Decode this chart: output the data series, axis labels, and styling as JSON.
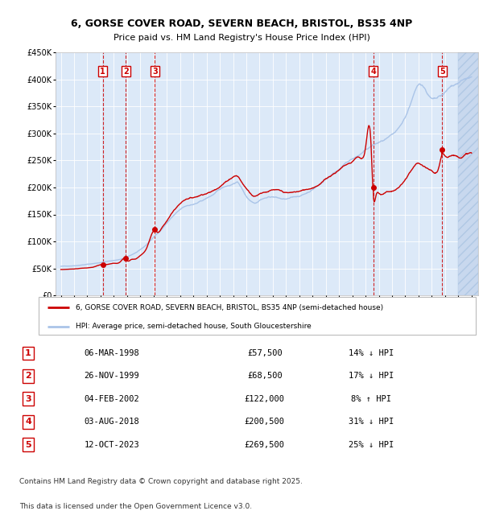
{
  "title_line1": "6, GORSE COVER ROAD, SEVERN BEACH, BRISTOL, BS35 4NP",
  "title_line2": "Price paid vs. HM Land Registry's House Price Index (HPI)",
  "ylim": [
    0,
    450000
  ],
  "yticks": [
    0,
    50000,
    100000,
    150000,
    200000,
    250000,
    300000,
    350000,
    400000,
    450000
  ],
  "ytick_labels": [
    "£0",
    "£50K",
    "£100K",
    "£150K",
    "£200K",
    "£250K",
    "£300K",
    "£350K",
    "£400K",
    "£450K"
  ],
  "xmin": 1994.6,
  "xmax": 2026.5,
  "plot_bg_color": "#dce9f8",
  "hpi_color": "#aac4e8",
  "price_color": "#cc0000",
  "legend_label_price": "6, GORSE COVER ROAD, SEVERN BEACH, BRISTOL, BS35 4NP (semi-detached house)",
  "legend_label_hpi": "HPI: Average price, semi-detached house, South Gloucestershire",
  "transactions": [
    {
      "num": 1,
      "date_label": "06-MAR-1998",
      "price": 57500,
      "pct": "14%",
      "dir": "↓",
      "year": 1998.17
    },
    {
      "num": 2,
      "date_label": "26-NOV-1999",
      "price": 68500,
      "pct": "17%",
      "dir": "↓",
      "year": 1999.9
    },
    {
      "num": 3,
      "date_label": "04-FEB-2002",
      "price": 122000,
      "pct": "8%",
      "dir": "↑",
      "year": 2002.09
    },
    {
      "num": 4,
      "date_label": "03-AUG-2018",
      "price": 200500,
      "pct": "31%",
      "dir": "↓",
      "year": 2018.58
    },
    {
      "num": 5,
      "date_label": "12-OCT-2023",
      "price": 269500,
      "pct": "25%",
      "dir": "↓",
      "year": 2023.78
    }
  ],
  "footer_line1": "Contains HM Land Registry data © Crown copyright and database right 2025.",
  "footer_line2": "This data is licensed under the Open Government Licence v3.0.",
  "hpi_waypoints": [
    [
      1995.0,
      54000
    ],
    [
      1995.5,
      54500
    ],
    [
      1996.0,
      55500
    ],
    [
      1996.5,
      57000
    ],
    [
      1997.0,
      58500
    ],
    [
      1997.5,
      60000
    ],
    [
      1998.0,
      62000
    ],
    [
      1998.5,
      64000
    ],
    [
      1999.0,
      66000
    ],
    [
      1999.5,
      68000
    ],
    [
      2000.0,
      72000
    ],
    [
      2000.5,
      78000
    ],
    [
      2001.0,
      85000
    ],
    [
      2001.5,
      95000
    ],
    [
      2002.0,
      108000
    ],
    [
      2002.5,
      120000
    ],
    [
      2003.0,
      135000
    ],
    [
      2003.5,
      148000
    ],
    [
      2004.0,
      158000
    ],
    [
      2004.5,
      165000
    ],
    [
      2005.0,
      168000
    ],
    [
      2005.5,
      172000
    ],
    [
      2006.0,
      178000
    ],
    [
      2006.5,
      185000
    ],
    [
      2007.0,
      193000
    ],
    [
      2007.5,
      200000
    ],
    [
      2008.0,
      205000
    ],
    [
      2008.3,
      208000
    ],
    [
      2008.7,
      195000
    ],
    [
      2009.0,
      182000
    ],
    [
      2009.3,
      175000
    ],
    [
      2009.7,
      172000
    ],
    [
      2010.0,
      178000
    ],
    [
      2010.5,
      183000
    ],
    [
      2011.0,
      185000
    ],
    [
      2011.5,
      182000
    ],
    [
      2012.0,
      180000
    ],
    [
      2012.5,
      182000
    ],
    [
      2013.0,
      185000
    ],
    [
      2013.5,
      190000
    ],
    [
      2014.0,
      198000
    ],
    [
      2014.5,
      207000
    ],
    [
      2015.0,
      218000
    ],
    [
      2015.5,
      228000
    ],
    [
      2016.0,
      238000
    ],
    [
      2016.5,
      248000
    ],
    [
      2017.0,
      255000
    ],
    [
      2017.5,
      262000
    ],
    [
      2018.0,
      270000
    ],
    [
      2018.5,
      278000
    ],
    [
      2019.0,
      283000
    ],
    [
      2019.5,
      287000
    ],
    [
      2020.0,
      291000
    ],
    [
      2020.5,
      300000
    ],
    [
      2021.0,
      320000
    ],
    [
      2021.3,
      338000
    ],
    [
      2021.6,
      358000
    ],
    [
      2021.9,
      372000
    ],
    [
      2022.2,
      378000
    ],
    [
      2022.5,
      370000
    ],
    [
      2022.8,
      358000
    ],
    [
      2023.0,
      352000
    ],
    [
      2023.3,
      350000
    ],
    [
      2023.6,
      352000
    ],
    [
      2024.0,
      358000
    ],
    [
      2024.5,
      368000
    ],
    [
      2025.0,
      375000
    ],
    [
      2025.5,
      380000
    ],
    [
      2026.0,
      382000
    ]
  ],
  "price_waypoints": [
    [
      1995.0,
      48000
    ],
    [
      1995.5,
      48500
    ],
    [
      1996.0,
      49500
    ],
    [
      1996.5,
      50500
    ],
    [
      1997.0,
      51500
    ],
    [
      1997.5,
      53000
    ],
    [
      1998.17,
      57500
    ],
    [
      1998.5,
      57000
    ],
    [
      1999.0,
      60000
    ],
    [
      1999.5,
      63000
    ],
    [
      1999.9,
      68500
    ],
    [
      2000.0,
      65000
    ],
    [
      2000.3,
      67000
    ],
    [
      2000.6,
      68000
    ],
    [
      2001.0,
      75000
    ],
    [
      2001.5,
      90000
    ],
    [
      2002.09,
      122000
    ],
    [
      2002.3,
      118000
    ],
    [
      2002.6,
      125000
    ],
    [
      2003.0,
      140000
    ],
    [
      2003.5,
      158000
    ],
    [
      2004.0,
      172000
    ],
    [
      2004.5,
      182000
    ],
    [
      2005.0,
      185000
    ],
    [
      2005.5,
      190000
    ],
    [
      2006.0,
      195000
    ],
    [
      2006.5,
      200000
    ],
    [
      2007.0,
      210000
    ],
    [
      2007.5,
      220000
    ],
    [
      2008.0,
      230000
    ],
    [
      2008.3,
      232000
    ],
    [
      2008.7,
      218000
    ],
    [
      2009.0,
      208000
    ],
    [
      2009.3,
      200000
    ],
    [
      2009.7,
      195000
    ],
    [
      2010.0,
      200000
    ],
    [
      2010.5,
      205000
    ],
    [
      2011.0,
      208000
    ],
    [
      2011.5,
      205000
    ],
    [
      2012.0,
      200000
    ],
    [
      2012.5,
      200000
    ],
    [
      2013.0,
      202000
    ],
    [
      2013.5,
      205000
    ],
    [
      2014.0,
      210000
    ],
    [
      2014.5,
      218000
    ],
    [
      2015.0,
      228000
    ],
    [
      2015.5,
      238000
    ],
    [
      2016.0,
      248000
    ],
    [
      2016.5,
      258000
    ],
    [
      2017.0,
      265000
    ],
    [
      2017.5,
      275000
    ],
    [
      2018.0,
      295000
    ],
    [
      2018.4,
      308000
    ],
    [
      2018.58,
      200500
    ],
    [
      2018.8,
      200000
    ],
    [
      2019.0,
      202000
    ],
    [
      2019.5,
      205000
    ],
    [
      2020.0,
      208000
    ],
    [
      2020.5,
      215000
    ],
    [
      2021.0,
      230000
    ],
    [
      2021.5,
      248000
    ],
    [
      2022.0,
      258000
    ],
    [
      2022.5,
      248000
    ],
    [
      2023.0,
      240000
    ],
    [
      2023.5,
      245000
    ],
    [
      2023.78,
      269500
    ],
    [
      2024.0,
      268000
    ],
    [
      2024.5,
      272000
    ],
    [
      2025.0,
      270000
    ],
    [
      2025.5,
      275000
    ],
    [
      2026.0,
      278000
    ]
  ]
}
